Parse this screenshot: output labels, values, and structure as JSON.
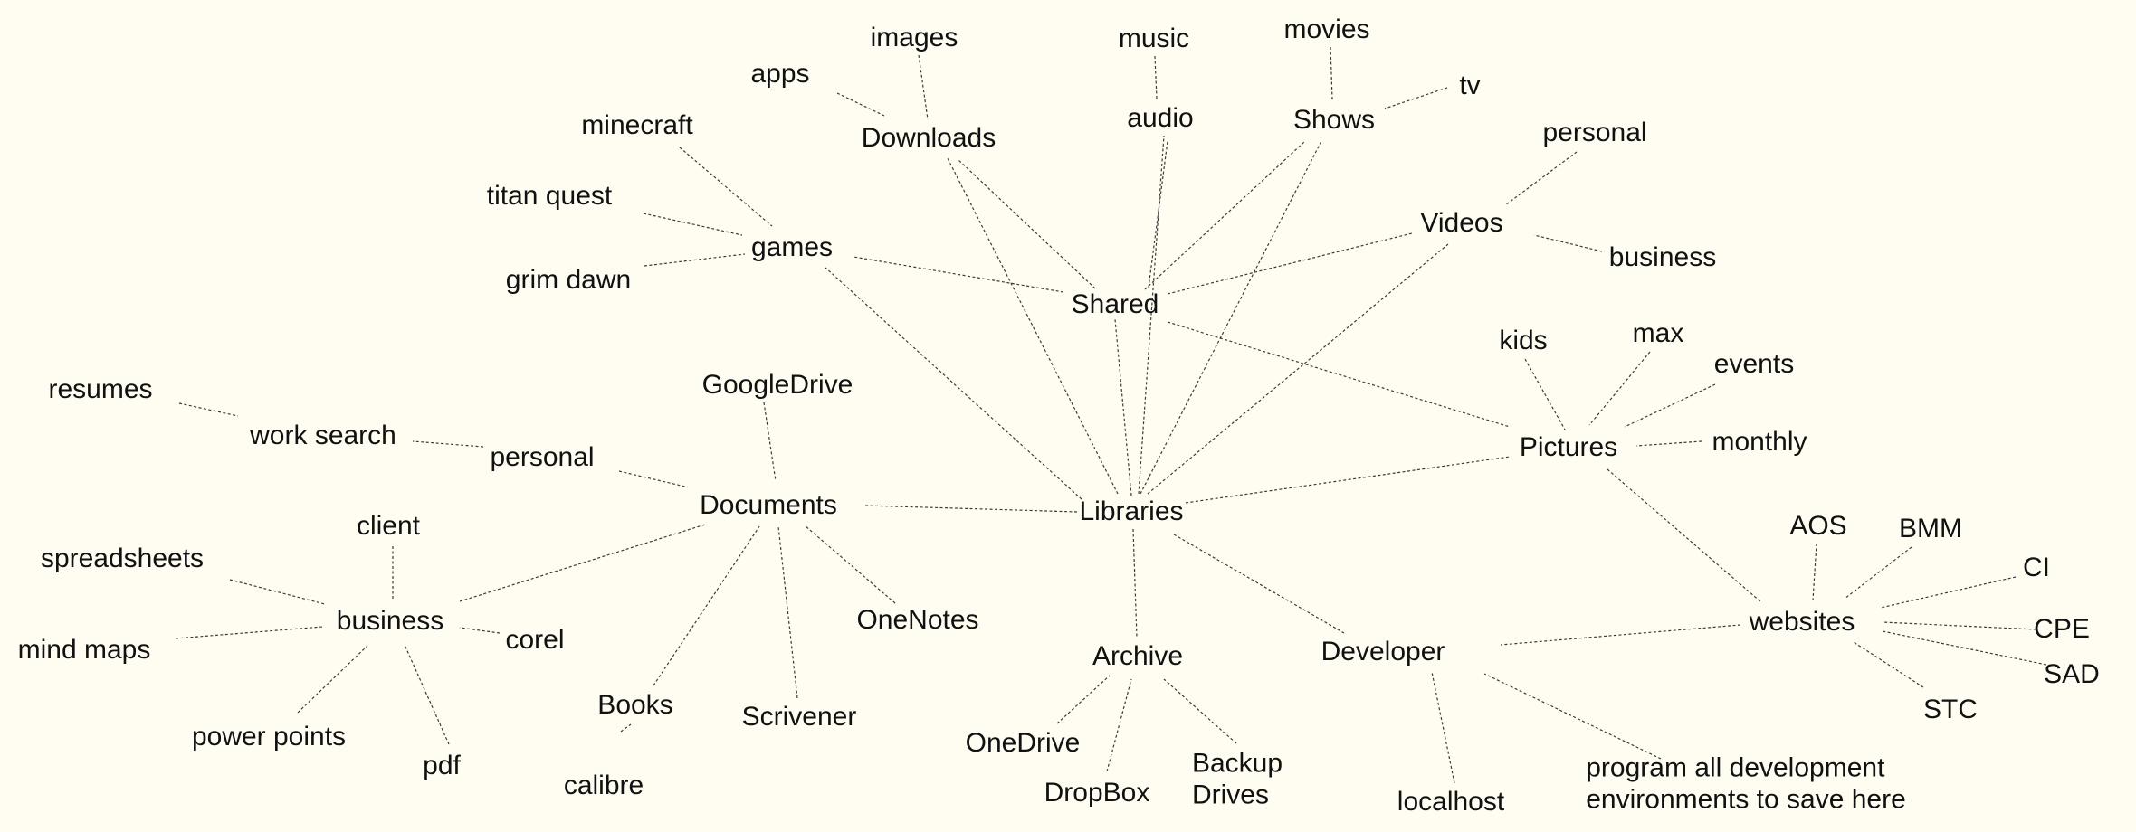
{
  "nodes": [
    {
      "id": "libraries",
      "label": "Libraries"
    },
    {
      "id": "shared",
      "label": "Shared"
    },
    {
      "id": "documents",
      "label": "Documents"
    },
    {
      "id": "pictures",
      "label": "Pictures"
    },
    {
      "id": "developer",
      "label": "Developer"
    },
    {
      "id": "archive",
      "label": "Archive"
    },
    {
      "id": "downloads",
      "label": "Downloads"
    },
    {
      "id": "apps",
      "label": "apps"
    },
    {
      "id": "images",
      "label": "images"
    },
    {
      "id": "audio",
      "label": "audio"
    },
    {
      "id": "music",
      "label": "music"
    },
    {
      "id": "shows",
      "label": "Shows"
    },
    {
      "id": "movies",
      "label": "movies"
    },
    {
      "id": "tv",
      "label": "tv"
    },
    {
      "id": "videos",
      "label": "Videos"
    },
    {
      "id": "videos-personal",
      "label": "personal"
    },
    {
      "id": "videos-business",
      "label": "business"
    },
    {
      "id": "games",
      "label": "games"
    },
    {
      "id": "minecraft",
      "label": "minecraft"
    },
    {
      "id": "titan-quest",
      "label": "titan quest"
    },
    {
      "id": "grim-dawn",
      "label": "grim dawn"
    },
    {
      "id": "kids",
      "label": "kids"
    },
    {
      "id": "max",
      "label": "max"
    },
    {
      "id": "events",
      "label": "events"
    },
    {
      "id": "monthly",
      "label": "monthly"
    },
    {
      "id": "websites",
      "label": "websites"
    },
    {
      "id": "aos",
      "label": "AOS"
    },
    {
      "id": "bmm",
      "label": "BMM"
    },
    {
      "id": "ci",
      "label": "CI"
    },
    {
      "id": "cpe",
      "label": "CPE"
    },
    {
      "id": "sad",
      "label": "SAD"
    },
    {
      "id": "stc",
      "label": "STC"
    },
    {
      "id": "localhost",
      "label": "localhost"
    },
    {
      "id": "program-all",
      "label": "program all development\nenvironments to save here"
    },
    {
      "id": "onedrive",
      "label": "OneDrive"
    },
    {
      "id": "dropbox",
      "label": "DropBox"
    },
    {
      "id": "backup-drives",
      "label": "Backup\nDrives"
    },
    {
      "id": "googledrive",
      "label": "GoogleDrive"
    },
    {
      "id": "onenotes",
      "label": "OneNotes"
    },
    {
      "id": "scrivener",
      "label": "Scrivener"
    },
    {
      "id": "books",
      "label": "Books"
    },
    {
      "id": "calibre",
      "label": "calibre"
    },
    {
      "id": "docs-personal",
      "label": "personal"
    },
    {
      "id": "work-search",
      "label": "work search"
    },
    {
      "id": "resumes",
      "label": "resumes"
    },
    {
      "id": "business",
      "label": "business"
    },
    {
      "id": "client",
      "label": "client"
    },
    {
      "id": "spreadsheets",
      "label": "spreadsheets"
    },
    {
      "id": "mind-maps",
      "label": "mind maps"
    },
    {
      "id": "corel",
      "label": "corel"
    },
    {
      "id": "power-points",
      "label": "power points"
    },
    {
      "id": "pdf",
      "label": "pdf"
    }
  ],
  "edges": [
    [
      "libraries",
      "shared"
    ],
    [
      "libraries",
      "documents"
    ],
    [
      "libraries",
      "pictures"
    ],
    [
      "libraries",
      "developer"
    ],
    [
      "libraries",
      "archive"
    ],
    [
      "libraries",
      "downloads"
    ],
    [
      "libraries",
      "games"
    ],
    [
      "libraries",
      "audio"
    ],
    [
      "libraries",
      "shows"
    ],
    [
      "libraries",
      "videos"
    ],
    [
      "shared",
      "downloads"
    ],
    [
      "shared",
      "audio"
    ],
    [
      "shared",
      "shows"
    ],
    [
      "shared",
      "videos"
    ],
    [
      "shared",
      "games"
    ],
    [
      "shared",
      "pictures"
    ],
    [
      "downloads",
      "apps"
    ],
    [
      "downloads",
      "images"
    ],
    [
      "audio",
      "music"
    ],
    [
      "shows",
      "movies"
    ],
    [
      "shows",
      "tv"
    ],
    [
      "videos",
      "videos-personal"
    ],
    [
      "videos",
      "videos-business"
    ],
    [
      "games",
      "minecraft"
    ],
    [
      "games",
      "titan-quest"
    ],
    [
      "games",
      "grim-dawn"
    ],
    [
      "pictures",
      "kids"
    ],
    [
      "pictures",
      "max"
    ],
    [
      "pictures",
      "events"
    ],
    [
      "pictures",
      "monthly"
    ],
    [
      "pictures",
      "websites"
    ],
    [
      "websites",
      "aos"
    ],
    [
      "websites",
      "bmm"
    ],
    [
      "websites",
      "ci"
    ],
    [
      "websites",
      "cpe"
    ],
    [
      "websites",
      "sad"
    ],
    [
      "websites",
      "stc"
    ],
    [
      "websites",
      "developer"
    ],
    [
      "developer",
      "localhost"
    ],
    [
      "developer",
      "program-all"
    ],
    [
      "archive",
      "onedrive"
    ],
    [
      "archive",
      "dropbox"
    ],
    [
      "archive",
      "backup-drives"
    ],
    [
      "documents",
      "googledrive"
    ],
    [
      "documents",
      "onenotes"
    ],
    [
      "documents",
      "scrivener"
    ],
    [
      "documents",
      "books"
    ],
    [
      "documents",
      "docs-personal"
    ],
    [
      "documents",
      "business"
    ],
    [
      "books",
      "calibre"
    ],
    [
      "docs-personal",
      "work-search"
    ],
    [
      "work-search",
      "resumes"
    ],
    [
      "business",
      "client"
    ],
    [
      "business",
      "spreadsheets"
    ],
    [
      "business",
      "mind-maps"
    ],
    [
      "business",
      "corel"
    ],
    [
      "business",
      "power-points"
    ],
    [
      "business",
      "pdf"
    ]
  ]
}
